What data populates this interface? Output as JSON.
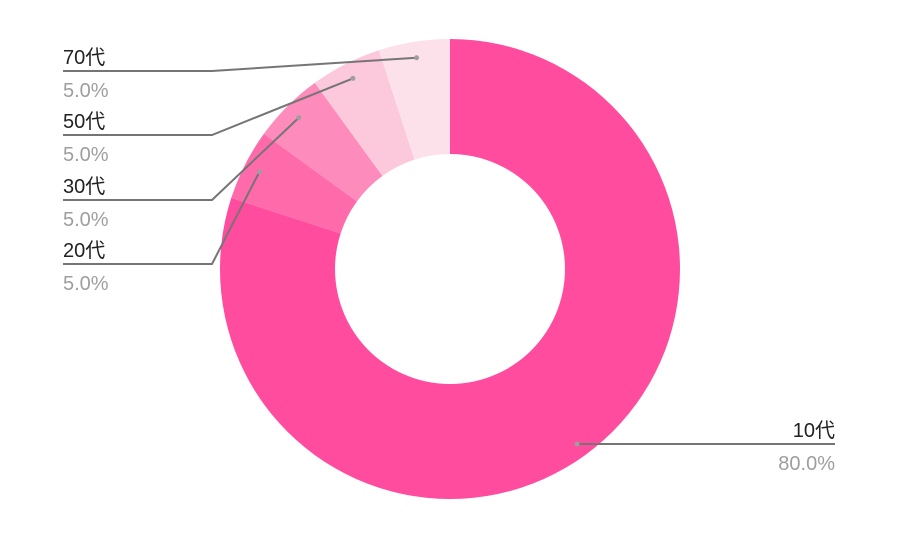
{
  "chart_data": {
    "type": "pie",
    "donut": true,
    "title": "",
    "slices": [
      {
        "label": "10代",
        "value": 80.0,
        "percent_label": "80.0%",
        "color": "#FF4C9E"
      },
      {
        "label": "20代",
        "value": 5.0,
        "percent_label": "5.0%",
        "color": "#FF6BAA"
      },
      {
        "label": "30代",
        "value": 5.0,
        "percent_label": "5.0%",
        "color": "#FD8BBB"
      },
      {
        "label": "50代",
        "value": 5.0,
        "percent_label": "5.0%",
        "color": "#FBC9DB"
      },
      {
        "label": "70代",
        "value": 5.0,
        "percent_label": "5.0%",
        "color": "#FCE1EA"
      }
    ],
    "label_color": "#222222",
    "percent_color": "#9E9E9E",
    "leader_color": "#757575"
  }
}
